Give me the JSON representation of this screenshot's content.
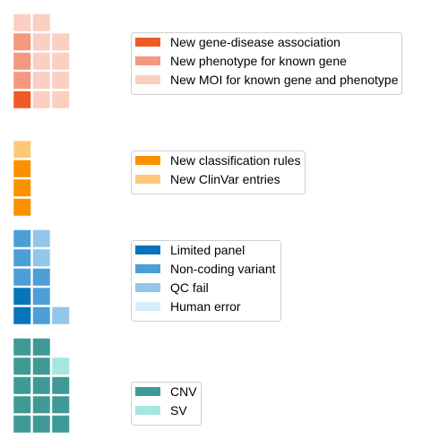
{
  "chart_data": [
    {
      "type": "waffle",
      "panel": "discovery",
      "series": [
        {
          "name": "New gene-disease association",
          "color": "#f05a28",
          "count": 1
        },
        {
          "name": "New phenotype for known gene",
          "color": "#f4987e",
          "count": 3
        },
        {
          "name": "New MOI for known gene and phenotype",
          "color": "#fbcfc1",
          "count": 10
        }
      ]
    },
    {
      "type": "waffle",
      "panel": "classification",
      "series": [
        {
          "name": "New classification rules",
          "color": "#fb9100",
          "count": 3
        },
        {
          "name": "New ClinVar entries",
          "color": "#ffc878",
          "count": 1
        }
      ]
    },
    {
      "type": "waffle",
      "panel": "technical",
      "series": [
        {
          "name": "Limited panel",
          "color": "#0874bc",
          "count": 2
        },
        {
          "name": "Non-coding variant",
          "color": "#4c9fd6",
          "count": 6
        },
        {
          "name": "QC fail",
          "color": "#93c6eb",
          "count": 3
        },
        {
          "name": "Human error",
          "color": "#d5edfc",
          "count": 0
        }
      ]
    },
    {
      "type": "waffle",
      "panel": "structural",
      "series": [
        {
          "name": "CNV",
          "color": "#3f9a95",
          "count": 13
        },
        {
          "name": "SV",
          "color": "#a7e6e1",
          "count": 1
        }
      ]
    }
  ]
}
